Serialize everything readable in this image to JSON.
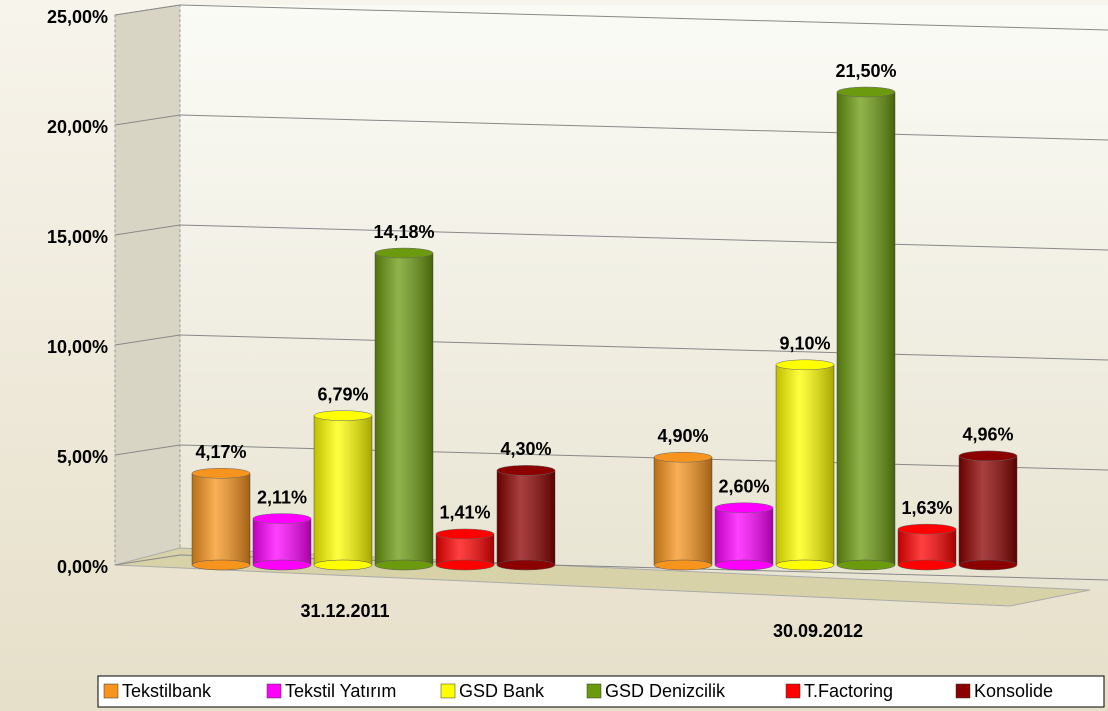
{
  "chart_data": {
    "type": "bar",
    "categories": [
      "31.12.2011",
      "30.09.2012"
    ],
    "series": [
      {
        "name": "Tekstilbank",
        "color": "#f7941d",
        "values": [
          4.17,
          4.9
        ],
        "value_labels": [
          "4,17%",
          "4,90%"
        ]
      },
      {
        "name": "Tekstil Yatırım",
        "color": "#ff00ff",
        "values": [
          2.11,
          2.6
        ],
        "value_labels": [
          "2,11%",
          "2,60%"
        ]
      },
      {
        "name": "GSD Bank",
        "color": "#ffff00",
        "values": [
          6.79,
          9.1
        ],
        "value_labels": [
          "6,79%",
          "9,10%"
        ]
      },
      {
        "name": "GSD Denizcilik",
        "color": "#6b9a0f",
        "values": [
          14.18,
          21.5
        ],
        "value_labels": [
          "14,18%",
          "21,50%"
        ]
      },
      {
        "name": "T.Factoring",
        "color": "#ff0000",
        "values": [
          1.41,
          1.63
        ],
        "value_labels": [
          "1,41%",
          "1,63%"
        ]
      },
      {
        "name": "Konsolide",
        "color": "#8b0000",
        "values": [
          4.3,
          4.96
        ],
        "value_labels": [
          "4,30%",
          "4,96%"
        ]
      }
    ],
    "ylim": [
      0,
      25
    ],
    "yticks": [
      {
        "value": 0,
        "label": "0,00%"
      },
      {
        "value": 5,
        "label": "5,00%"
      },
      {
        "value": 10,
        "label": "10,00%"
      },
      {
        "value": 15,
        "label": "15,00%"
      },
      {
        "value": 20,
        "label": "20,00%"
      },
      {
        "value": 25,
        "label": "25,00%"
      }
    ],
    "grid": true,
    "legend": "bottom"
  }
}
